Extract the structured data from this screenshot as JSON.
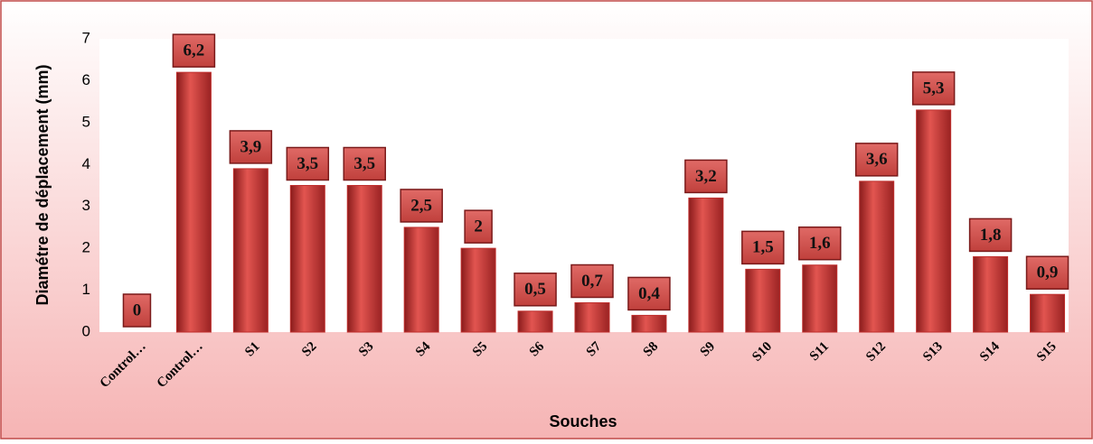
{
  "chart_data": {
    "type": "bar",
    "categories": [
      "Control…",
      "Control…",
      "S1",
      "S2",
      "S3",
      "S4",
      "S5",
      "S6",
      "S7",
      "S8",
      "S9",
      "S10",
      "S11",
      "S12",
      "S13",
      "S14",
      "S15"
    ],
    "values": [
      0,
      6.2,
      3.9,
      3.5,
      3.5,
      2.5,
      2,
      0.5,
      0.7,
      0.4,
      3.2,
      1.5,
      1.6,
      3.6,
      5.3,
      1.8,
      0.9
    ],
    "value_labels": [
      "0",
      "6,2",
      "3,9",
      "3,5",
      "3,5",
      "2,5",
      "2",
      "0,5",
      "0,7",
      "0,4",
      "3,2",
      "1,5",
      "1,6",
      "3,6",
      "5,3",
      "1,8",
      "0,9"
    ],
    "color": "#c0302e",
    "y_label": "Diamétre de déplacement (mm)",
    "x_label": "Souches",
    "ylim": [
      0,
      7
    ],
    "yticks": [
      0,
      1,
      2,
      3,
      4,
      5,
      6,
      7
    ],
    "grid": false
  }
}
